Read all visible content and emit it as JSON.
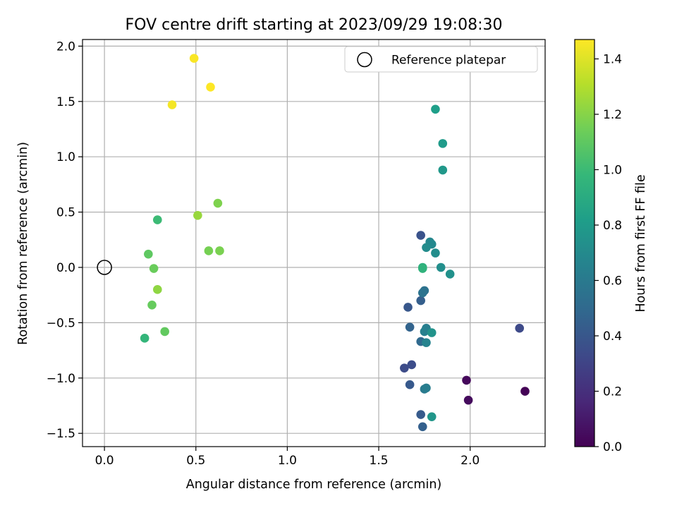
{
  "chart_data": {
    "type": "scatter",
    "title": "FOV centre drift starting at 2023/09/29 19:08:30",
    "xlabel": "Angular distance from reference (arcmin)",
    "ylabel": "Rotation from reference (arcmin)",
    "xlim": [
      -0.12,
      2.41
    ],
    "ylim": [
      -1.62,
      2.06
    ],
    "xticks": [
      0.0,
      0.5,
      1.0,
      1.5,
      2.0
    ],
    "xtick_labels": [
      "0.0",
      "0.5",
      "1.0",
      "1.5",
      "2.0"
    ],
    "yticks": [
      -1.5,
      -1.0,
      -0.5,
      0.0,
      0.5,
      1.0,
      1.5,
      2.0
    ],
    "ytick_labels": [
      "−1.5",
      "−1.0",
      "−0.5",
      "0.0",
      "0.5",
      "1.0",
      "1.5",
      "2.0"
    ],
    "grid": true,
    "colormap": "viridis",
    "colorbar": {
      "label": "Hours from first FF file",
      "range": [
        0.0,
        1.47
      ],
      "ticks": [
        0.0,
        0.2,
        0.4,
        0.6,
        0.8,
        1.0,
        1.2,
        1.4
      ],
      "tick_labels": [
        "0.0",
        "0.2",
        "0.4",
        "0.6",
        "0.8",
        "1.0",
        "1.2",
        "1.4"
      ]
    },
    "legend": {
      "placement": "top-right",
      "entries": [
        "Reference platepar"
      ]
    },
    "reference_point": {
      "x": 0.0,
      "y": 0.0
    },
    "points": [
      {
        "x": 2.3,
        "y": -1.12,
        "c": 0.01
      },
      {
        "x": 1.98,
        "y": -1.02,
        "c": 0.03
      },
      {
        "x": 1.99,
        "y": -1.2,
        "c": 0.04
      },
      {
        "x": 2.27,
        "y": -0.55,
        "c": 0.33
      },
      {
        "x": 1.64,
        "y": -0.91,
        "c": 0.34
      },
      {
        "x": 1.68,
        "y": -0.88,
        "c": 0.35
      },
      {
        "x": 1.73,
        "y": 0.29,
        "c": 0.38
      },
      {
        "x": 1.66,
        "y": -0.36,
        "c": 0.4
      },
      {
        "x": 1.67,
        "y": -1.06,
        "c": 0.41
      },
      {
        "x": 1.73,
        "y": -1.33,
        "c": 0.42
      },
      {
        "x": 1.73,
        "y": -0.3,
        "c": 0.44
      },
      {
        "x": 1.74,
        "y": -1.44,
        "c": 0.45
      },
      {
        "x": 1.67,
        "y": -0.54,
        "c": 0.47
      },
      {
        "x": 1.73,
        "y": -0.67,
        "c": 0.5
      },
      {
        "x": 1.75,
        "y": -0.21,
        "c": 0.55
      },
      {
        "x": 1.74,
        "y": -0.23,
        "c": 0.56
      },
      {
        "x": 1.75,
        "y": -1.1,
        "c": 0.6
      },
      {
        "x": 1.76,
        "y": -1.09,
        "c": 0.62
      },
      {
        "x": 1.76,
        "y": -0.55,
        "c": 0.63
      },
      {
        "x": 1.75,
        "y": -0.58,
        "c": 0.64
      },
      {
        "x": 1.76,
        "y": -0.68,
        "c": 0.66
      },
      {
        "x": 1.78,
        "y": 0.23,
        "c": 0.68
      },
      {
        "x": 1.79,
        "y": 0.21,
        "c": 0.69
      },
      {
        "x": 1.76,
        "y": 0.18,
        "c": 0.71
      },
      {
        "x": 1.81,
        "y": 0.13,
        "c": 0.72
      },
      {
        "x": 1.84,
        "y": 0.0,
        "c": 0.73
      },
      {
        "x": 1.89,
        "y": -0.06,
        "c": 0.74
      },
      {
        "x": 1.79,
        "y": -0.59,
        "c": 0.75
      },
      {
        "x": 1.79,
        "y": -1.35,
        "c": 0.77
      },
      {
        "x": 1.85,
        "y": 0.88,
        "c": 0.78
      },
      {
        "x": 1.85,
        "y": 1.12,
        "c": 0.8
      },
      {
        "x": 1.81,
        "y": 1.43,
        "c": 0.82
      },
      {
        "x": 1.74,
        "y": 0.0,
        "c": 0.93
      },
      {
        "x": 1.74,
        "y": -0.01,
        "c": 0.95
      },
      {
        "x": 0.22,
        "y": -0.64,
        "c": 0.97
      },
      {
        "x": 0.29,
        "y": 0.43,
        "c": 1.0
      },
      {
        "x": 0.24,
        "y": 0.12,
        "c": 1.1
      },
      {
        "x": 0.33,
        "y": -0.58,
        "c": 1.11
      },
      {
        "x": 0.26,
        "y": -0.34,
        "c": 1.12
      },
      {
        "x": 0.27,
        "y": -0.01,
        "c": 1.13
      },
      {
        "x": 0.57,
        "y": 0.15,
        "c": 1.16
      },
      {
        "x": 0.63,
        "y": 0.15,
        "c": 1.17
      },
      {
        "x": 0.62,
        "y": 0.58,
        "c": 1.18
      },
      {
        "x": 0.29,
        "y": -0.2,
        "c": 1.22
      },
      {
        "x": 0.51,
        "y": 0.47,
        "c": 1.24
      },
      {
        "x": 0.37,
        "y": 1.47,
        "c": 1.45
      },
      {
        "x": 0.49,
        "y": 1.89,
        "c": 1.46
      },
      {
        "x": 0.58,
        "y": 1.63,
        "c": 1.47
      }
    ]
  }
}
